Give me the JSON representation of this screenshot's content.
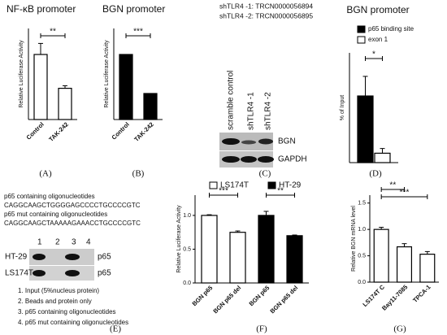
{
  "chart_data": [
    {
      "type": "bar",
      "title": "NF-κB promoter",
      "y_label": "Relative Luciferase Activity",
      "categories": [
        "Control",
        "TAK-242"
      ],
      "values": [
        1.0,
        0.48
      ],
      "errors": [
        0.17,
        0.04
      ],
      "color": "#ffffff",
      "ylim": [
        0,
        1.4
      ],
      "annotations": [
        "**"
      ]
    },
    {
      "type": "bar",
      "title": "BGN promoter",
      "y_label": "Relative Luciferase Activity",
      "categories": [
        "Control",
        "TAK-242"
      ],
      "values": [
        1.0,
        0.4
      ],
      "color": "#000000",
      "ylim": [
        0,
        1.4
      ],
      "annotations": [
        "***"
      ]
    },
    {
      "type": "bar",
      "title": "BGN promoter",
      "y_label": "% of Input",
      "categories": [
        null
      ],
      "series": [
        {
          "name": "p65 binding site",
          "color": "#000000",
          "values": [
            0.85
          ],
          "errors": [
            0.25
          ]
        },
        {
          "name": "exon 1",
          "color": "#ffffff",
          "values": [
            0.12
          ],
          "errors": [
            0.06
          ]
        }
      ],
      "ylim": [
        0,
        1.4
      ],
      "annotations": [
        "*"
      ]
    },
    {
      "type": "bar",
      "y_label": "Relative Luciferase Activity",
      "categories": [
        "BGN p65",
        "BGN p65 del",
        "BGN p65",
        "BGN p65 del"
      ],
      "series": [
        {
          "name": "LS174T",
          "color": "#ffffff",
          "values": [
            1.0,
            0.75,
            null,
            null
          ],
          "errors": [
            0.01,
            0.02,
            null,
            null
          ]
        },
        {
          "name": "HT-29",
          "color": "#000000",
          "values": [
            null,
            null,
            1.0,
            0.7
          ],
          "errors": [
            null,
            null,
            0.06,
            0.01
          ]
        }
      ],
      "ylim": [
        0,
        1.3
      ],
      "yticks": [
        {
          "value": 0,
          "label": "0.0"
        },
        {
          "value": 0.5,
          "label": "0.5"
        },
        {
          "value": 1,
          "label": "1.0"
        }
      ],
      "annotations": [
        "***",
        "**"
      ]
    },
    {
      "type": "bar",
      "y_label": "Relative BGN mRNA level",
      "categories": [
        "LS174T C",
        "Bay11-7085",
        "TPCA-1"
      ],
      "values": [
        1.0,
        0.67,
        0.53
      ],
      "errors": [
        0.04,
        0.06,
        0.05
      ],
      "color": "#ffffff",
      "ylim": [
        0,
        1.65
      ],
      "yticks": [
        {
          "value": 0,
          "label": "0.0"
        },
        {
          "value": 0.5,
          "label": "0.5"
        },
        {
          "value": 1,
          "label": "1.0"
        },
        {
          "value": 1.5,
          "label": "1.5"
        }
      ],
      "annotations": [
        "**",
        "***"
      ]
    }
  ],
  "blot": {
    "header": [
      "shTLR4 -1: TRCN0000056894",
      "shTLR4 -2: TRCN0000056895"
    ],
    "lanes": [
      "scramble control",
      "shTLR4 -1",
      "shTLR4 -2"
    ],
    "bands": [
      "BGN",
      "GAPDH"
    ]
  },
  "oligo": {
    "lines": [
      "p65 containing oligonucleotides",
      "CAGGCAAGCTGGGGAGCCCCTGCCCCGTC",
      "p65 mut containing oligonucleotides",
      "CAGGCAAGCTAAAAAGAAACCTGCCCCGTC"
    ],
    "lanes": [
      "1",
      "2",
      "3",
      "4"
    ],
    "rows": [
      "HT-29",
      "LS174T"
    ],
    "bands": [
      "p65",
      "p65"
    ],
    "legend": [
      "1. Input (5%nucleus protein)",
      "2. Beads and protein only",
      "3. p65 containing oligonucleotides",
      "4. p65 mut containing oligonucleotides"
    ]
  },
  "panel_labels": [
    "(A)",
    "(B)",
    "(C)",
    "(D)",
    "(E)",
    "(F)",
    "(G)"
  ]
}
